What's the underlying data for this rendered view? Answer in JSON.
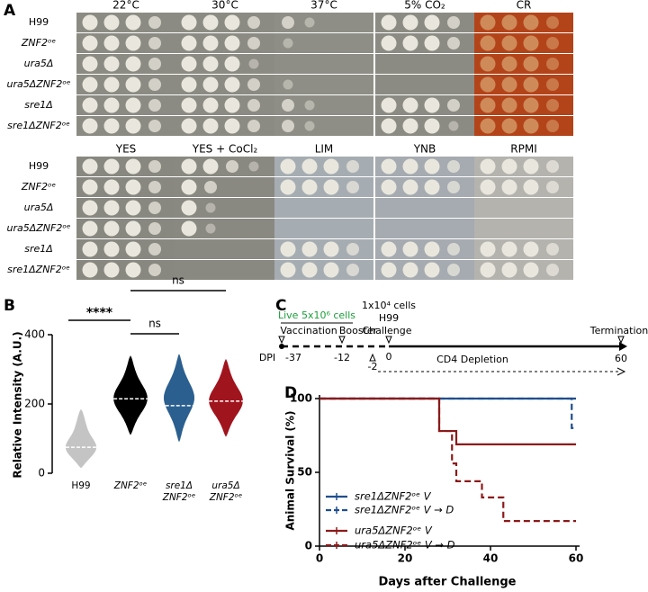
{
  "panel_a": {
    "label": "A",
    "blocks": [
      {
        "conditions": [
          "22°C",
          "30°C",
          "37°C",
          "5% CO₂",
          "CR"
        ],
        "strains": [
          "H99",
          "ZNF2ᵒᵉ",
          "ura5Δ",
          "ura5ΔZNF2ᵒᵉ",
          "sre1Δ",
          "sre1ΔZNF2ᵒᵉ"
        ]
      },
      {
        "conditions": [
          "YES",
          "YES + CoCl₂",
          "LIM",
          "YNB",
          "RPMI"
        ],
        "strains": [
          "H99",
          "ZNF2ᵒᵉ",
          "ura5Δ",
          "ura5ΔZNF2ᵒᵉ",
          "sre1Δ",
          "sre1ΔZNF2ᵒᵉ"
        ]
      }
    ]
  },
  "chart_data": [
    {
      "type": "violin",
      "panel": "B",
      "ylabel": "Relative Intensity (A.U.)",
      "categories": [
        "H99",
        "ZNF2ᵒᵉ",
        "sre1Δ ZNF2ᵒᵉ",
        "ura5Δ ZNF2ᵒᵉ"
      ],
      "medians": [
        75,
        215,
        195,
        208
      ],
      "mins": [
        15,
        110,
        90,
        105
      ],
      "maxes": [
        185,
        340,
        345,
        330
      ],
      "colors": [
        "#c4c4c4",
        "#000000",
        "#2b5f8f",
        "#a0141e"
      ],
      "ylim": [
        0,
        400
      ],
      "yticks": [
        0,
        200,
        400
      ],
      "annotations": [
        "****",
        "ns",
        "ns"
      ]
    },
    {
      "type": "line",
      "step": true,
      "panel": "D",
      "xlabel": "Days after Challenge",
      "ylabel": "Animal Survival (%)",
      "xlim": [
        0,
        60
      ],
      "xticks": [
        0,
        20,
        40,
        60
      ],
      "ylim": [
        0,
        100
      ],
      "yticks": [
        0,
        50,
        100
      ],
      "legend": "lower left",
      "series": [
        {
          "name": "sre1ΔZNF2ᵒᵉ V",
          "color": "#1f4e8c",
          "dashed": false,
          "x": [
            0,
            60
          ],
          "values": [
            100,
            100
          ]
        },
        {
          "name": "sre1ΔZNF2ᵒᵉ V → D",
          "color": "#1f4e8c",
          "dashed": true,
          "x": [
            0,
            59,
            60
          ],
          "values": [
            100,
            80,
            80
          ]
        },
        {
          "name": "ura5ΔZNF2ᵒᵉ V",
          "color": "#8b1a1a",
          "dashed": false,
          "x": [
            0,
            28,
            32,
            60
          ],
          "values": [
            100,
            78,
            69,
            69
          ]
        },
        {
          "name": "ura5ΔZNF2ᵒᵉ V → D",
          "color": "#8b1a1a",
          "dashed": true,
          "x": [
            0,
            28,
            31,
            32,
            38,
            43,
            60
          ],
          "values": [
            100,
            78,
            56,
            44,
            33,
            17,
            17
          ]
        }
      ]
    }
  ],
  "panel_c": {
    "label": "C",
    "vaccine_dose": "Live 5x10⁶ cells",
    "challenge_dose": "1x10⁴ cells",
    "challenge_strain": "H99",
    "vaccination": "Vaccination",
    "booster": "Booster",
    "challenge": "Challenge",
    "termination": "Termination",
    "dpi": "DPI",
    "days": [
      "-37",
      "-12",
      "0",
      "60"
    ],
    "depletion": "CD4 Depletion",
    "depletion_start": "-2"
  }
}
